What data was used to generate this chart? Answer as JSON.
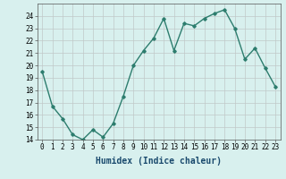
{
  "x": [
    0,
    1,
    2,
    3,
    4,
    5,
    6,
    7,
    8,
    9,
    10,
    11,
    12,
    13,
    14,
    15,
    16,
    17,
    18,
    19,
    20,
    21,
    22,
    23
  ],
  "y": [
    19.5,
    16.7,
    15.7,
    14.4,
    14.0,
    14.8,
    14.2,
    15.3,
    17.5,
    20.0,
    21.2,
    22.2,
    23.8,
    21.2,
    23.4,
    23.2,
    23.8,
    24.2,
    24.5,
    23.0,
    20.5,
    21.4,
    19.8,
    18.3
  ],
  "line_color": "#2d7d6e",
  "marker": "D",
  "marker_size": 1.8,
  "bg_color": "#d8f0ee",
  "grid_color": "#c0c8c8",
  "xlabel": "Humidex (Indice chaleur)",
  "ylim": [
    14,
    25
  ],
  "xlim": [
    -0.5,
    23.5
  ],
  "yticks": [
    14,
    15,
    16,
    17,
    18,
    19,
    20,
    21,
    22,
    23,
    24
  ],
  "xtick_labels": [
    "0",
    "1",
    "2",
    "3",
    "4",
    "5",
    "6",
    "7",
    "8",
    "9",
    "10",
    "11",
    "12",
    "13",
    "14",
    "15",
    "16",
    "17",
    "18",
    "19",
    "20",
    "21",
    "22",
    "23"
  ],
  "tick_fontsize": 5.5,
  "xlabel_fontsize": 7.0,
  "line_width": 1.0
}
